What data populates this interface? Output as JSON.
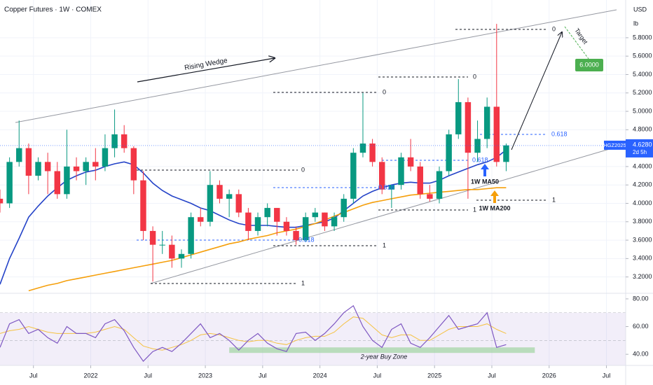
{
  "chart_data": [
    {
      "type": "candlestick",
      "title": "Copper Futures · 1W · COMEX",
      "y_unit": [
        "USD",
        "lb"
      ],
      "x": [
        "2021-03",
        "2021-04",
        "2021-05",
        "2021-06",
        "2021-07",
        "2021-08",
        "2021-09",
        "2021-10",
        "2021-11",
        "2021-12",
        "2022-01",
        "2022-02",
        "2022-03",
        "2022-04",
        "2022-05",
        "2022-06",
        "2022-07",
        "2022-08",
        "2022-09",
        "2022-10",
        "2022-11",
        "2022-12",
        "2023-01",
        "2023-02",
        "2023-03",
        "2023-04",
        "2023-05",
        "2023-06",
        "2023-07",
        "2023-08",
        "2023-09",
        "2023-10",
        "2023-11",
        "2023-12",
        "2024-01",
        "2024-02",
        "2024-03",
        "2024-04",
        "2024-05",
        "2024-06",
        "2024-07",
        "2024-08",
        "2024-09",
        "2024-10",
        "2024-11",
        "2024-12",
        "2025-01",
        "2025-02",
        "2025-03",
        "2025-04",
        "2025-05",
        "2025-06",
        "2025-07",
        "2025-08"
      ],
      "open": [
        4.05,
        4.0,
        4.45,
        4.6,
        4.3,
        4.45,
        4.35,
        4.1,
        4.4,
        4.35,
        4.45,
        4.4,
        4.6,
        4.75,
        4.6,
        4.25,
        3.7,
        3.55,
        3.55,
        3.4,
        3.45,
        3.85,
        3.8,
        4.2,
        4.05,
        4.1,
        3.9,
        3.7,
        3.85,
        3.95,
        3.8,
        3.7,
        3.6,
        3.85,
        3.9,
        3.75,
        3.85,
        4.05,
        4.55,
        4.65,
        4.45,
        4.15,
        4.2,
        4.5,
        4.4,
        4.1,
        4.05,
        4.35,
        4.75,
        5.1,
        4.55,
        4.7,
        5.05,
        4.45
      ],
      "high": [
        4.15,
        4.5,
        4.9,
        4.65,
        4.5,
        4.55,
        4.45,
        4.8,
        4.5,
        4.5,
        4.6,
        4.75,
        5.02,
        4.85,
        4.62,
        4.35,
        3.75,
        3.7,
        3.65,
        3.5,
        3.9,
        3.95,
        4.35,
        4.25,
        4.15,
        4.15,
        3.95,
        3.9,
        4.0,
        3.95,
        3.85,
        3.75,
        3.9,
        3.95,
        3.9,
        3.9,
        4.1,
        4.6,
        5.2,
        4.7,
        4.5,
        4.2,
        4.55,
        4.7,
        4.45,
        4.2,
        4.4,
        4.8,
        5.35,
        5.15,
        4.9,
        5.15,
        5.95,
        4.65
      ],
      "low": [
        3.9,
        3.95,
        4.4,
        4.1,
        4.25,
        4.1,
        4.05,
        4.05,
        4.25,
        4.2,
        4.25,
        4.35,
        4.5,
        4.55,
        4.1,
        3.6,
        3.15,
        3.45,
        3.3,
        3.3,
        3.4,
        3.75,
        3.75,
        4.0,
        3.85,
        3.85,
        3.6,
        3.65,
        3.75,
        3.65,
        3.65,
        3.55,
        3.58,
        3.8,
        3.7,
        3.7,
        3.8,
        4.0,
        4.5,
        4.4,
        4.1,
        3.95,
        4.15,
        4.35,
        4.05,
        4.02,
        4.0,
        4.3,
        4.7,
        4.05,
        4.45,
        4.6,
        4.4,
        4.35
      ],
      "close": [
        4.0,
        4.45,
        4.6,
        4.3,
        4.45,
        4.35,
        4.1,
        4.4,
        4.35,
        4.45,
        4.4,
        4.6,
        4.75,
        4.6,
        4.25,
        3.7,
        3.55,
        3.55,
        3.4,
        3.45,
        3.85,
        3.8,
        4.2,
        4.05,
        4.1,
        3.9,
        3.7,
        3.85,
        3.95,
        3.8,
        3.7,
        3.6,
        3.85,
        3.9,
        3.75,
        3.85,
        4.05,
        4.55,
        4.65,
        4.45,
        4.15,
        4.2,
        4.5,
        4.4,
        4.1,
        4.05,
        4.35,
        4.75,
        5.1,
        4.55,
        4.7,
        5.05,
        4.45,
        4.63
      ],
      "up_color": "#089981",
      "down_color": "#f23645",
      "overlays": [
        {
          "color": "#2443c8",
          "values": [
            3.12,
            3.4,
            3.62,
            3.85,
            3.97,
            4.08,
            4.17,
            4.25,
            4.3,
            4.34,
            4.36,
            4.4,
            4.43,
            4.45,
            4.42,
            4.33,
            4.22,
            4.14,
            4.08,
            4.04,
            4.0,
            3.95,
            3.92,
            3.87,
            3.82,
            3.78,
            3.76,
            3.76,
            3.76,
            3.75,
            3.74,
            3.74,
            3.76,
            3.78,
            3.8,
            3.84,
            3.92,
            4.0,
            4.08,
            4.13,
            4.17,
            4.2,
            4.22,
            4.23,
            4.22,
            4.22,
            4.25,
            4.3,
            4.34,
            4.38,
            4.42,
            4.45,
            4.5,
            4.58
          ]
        },
        {
          "color": "#f59f0b",
          "values": [
            null,
            null,
            null,
            3.05,
            3.08,
            3.11,
            3.13,
            3.16,
            3.18,
            3.2,
            3.22,
            3.24,
            3.26,
            3.28,
            3.3,
            3.32,
            3.34,
            3.36,
            3.38,
            3.41,
            3.44,
            3.47,
            3.5,
            3.53,
            3.56,
            3.58,
            3.61,
            3.63,
            3.65,
            3.68,
            3.7,
            3.72,
            3.75,
            3.78,
            3.82,
            3.86,
            3.9,
            3.94,
            3.98,
            4.01,
            4.03,
            4.05,
            4.07,
            4.09,
            4.1,
            4.11,
            4.12,
            4.13,
            4.14,
            4.15,
            4.15,
            4.16,
            4.17,
            4.17
          ]
        }
      ],
      "xlim": [
        "2021-03",
        "2026-08"
      ],
      "ylim": [
        3.03,
        6.21
      ],
      "xticks": [
        {
          "value": "2021-07",
          "label": "Jul"
        },
        {
          "value": "2022-01",
          "label": "2022"
        },
        {
          "value": "2022-07",
          "label": "Jul"
        },
        {
          "value": "2023-01",
          "label": "2023"
        },
        {
          "value": "2023-07",
          "label": "Jul"
        },
        {
          "value": "2024-01",
          "label": "2024"
        },
        {
          "value": "2024-07",
          "label": "Jul"
        },
        {
          "value": "2025-01",
          "label": "2025"
        },
        {
          "value": "2025-07",
          "label": "Jul"
        },
        {
          "value": "2026-01",
          "label": "2026"
        },
        {
          "value": "2026-07",
          "label": "Jul"
        }
      ],
      "yticks": [
        {
          "value": 3.2,
          "label": "3.2000"
        },
        {
          "value": 3.4,
          "label": "3.4000"
        },
        {
          "value": 3.6,
          "label": "3.6000"
        },
        {
          "value": 3.8,
          "label": "3.8000"
        },
        {
          "value": 4.0,
          "label": "4.0000"
        },
        {
          "value": 4.2,
          "label": "4.2000"
        },
        {
          "value": 4.4,
          "label": "4.4000"
        },
        {
          "value": 4.8,
          "label": "4.8000"
        },
        {
          "value": 5.0,
          "label": "5.0000"
        },
        {
          "value": 5.2,
          "label": "5.2000"
        },
        {
          "value": 5.4,
          "label": "5.4000"
        },
        {
          "value": 5.6,
          "label": "5.6000"
        },
        {
          "value": 5.8,
          "label": "5.8000"
        }
      ],
      "grid": true,
      "last_price": {
        "symbol": "HGZ2025",
        "value": 4.628,
        "label": "4.6280",
        "countdown": "2d 5h",
        "color": "#2962ff"
      },
      "annotations": {
        "wedge": "Rising Wedge",
        "ma50": "1W MA50",
        "ma200": "1W MA200",
        "target": "Target",
        "target_price": "6.0000",
        "fib": [
          "0",
          "0",
          "0",
          "0",
          "0.618",
          "0.618",
          "0.618",
          "0.618",
          "1",
          "1",
          "1",
          "1"
        ]
      }
    },
    {
      "type": "line",
      "series": [
        {
          "color": "#7e57c2",
          "values": [
            45,
            62,
            65,
            55,
            58,
            52,
            48,
            60,
            55,
            55,
            52,
            62,
            65,
            57,
            45,
            35,
            42,
            45,
            42,
            48,
            55,
            62,
            52,
            55,
            50,
            43,
            50,
            55,
            48,
            44,
            42,
            55,
            56,
            50,
            55,
            62,
            70,
            75,
            60,
            50,
            45,
            58,
            62,
            48,
            45,
            52,
            60,
            68,
            58,
            60,
            62,
            70,
            45,
            47
          ]
        },
        {
          "color": "#f5c242",
          "values": [
            55,
            57,
            58,
            60,
            58,
            56,
            55,
            55,
            55,
            55,
            56,
            58,
            60,
            58,
            52,
            46,
            44,
            43,
            45,
            47,
            50,
            54,
            55,
            54,
            52,
            50,
            49,
            50,
            50,
            48,
            47,
            50,
            52,
            53,
            53,
            56,
            62,
            67,
            66,
            60,
            54,
            52,
            54,
            54,
            50,
            50,
            54,
            58,
            60,
            60,
            60,
            62,
            58,
            55
          ]
        }
      ],
      "ylim": [
        32,
        83.5
      ],
      "yticks": [
        {
          "value": 80,
          "label": "80.00"
        },
        {
          "value": 60,
          "label": "60.00"
        },
        {
          "value": 40,
          "label": "40.00"
        }
      ],
      "band": [
        30,
        70
      ],
      "band_color": "#7e57c2",
      "midline": 50,
      "zone": {
        "label": "2-year Buy Zone",
        "range": [
          41,
          45
        ],
        "from": "2023-03",
        "to": "2025-11",
        "color": "#a5d6a7"
      }
    }
  ]
}
